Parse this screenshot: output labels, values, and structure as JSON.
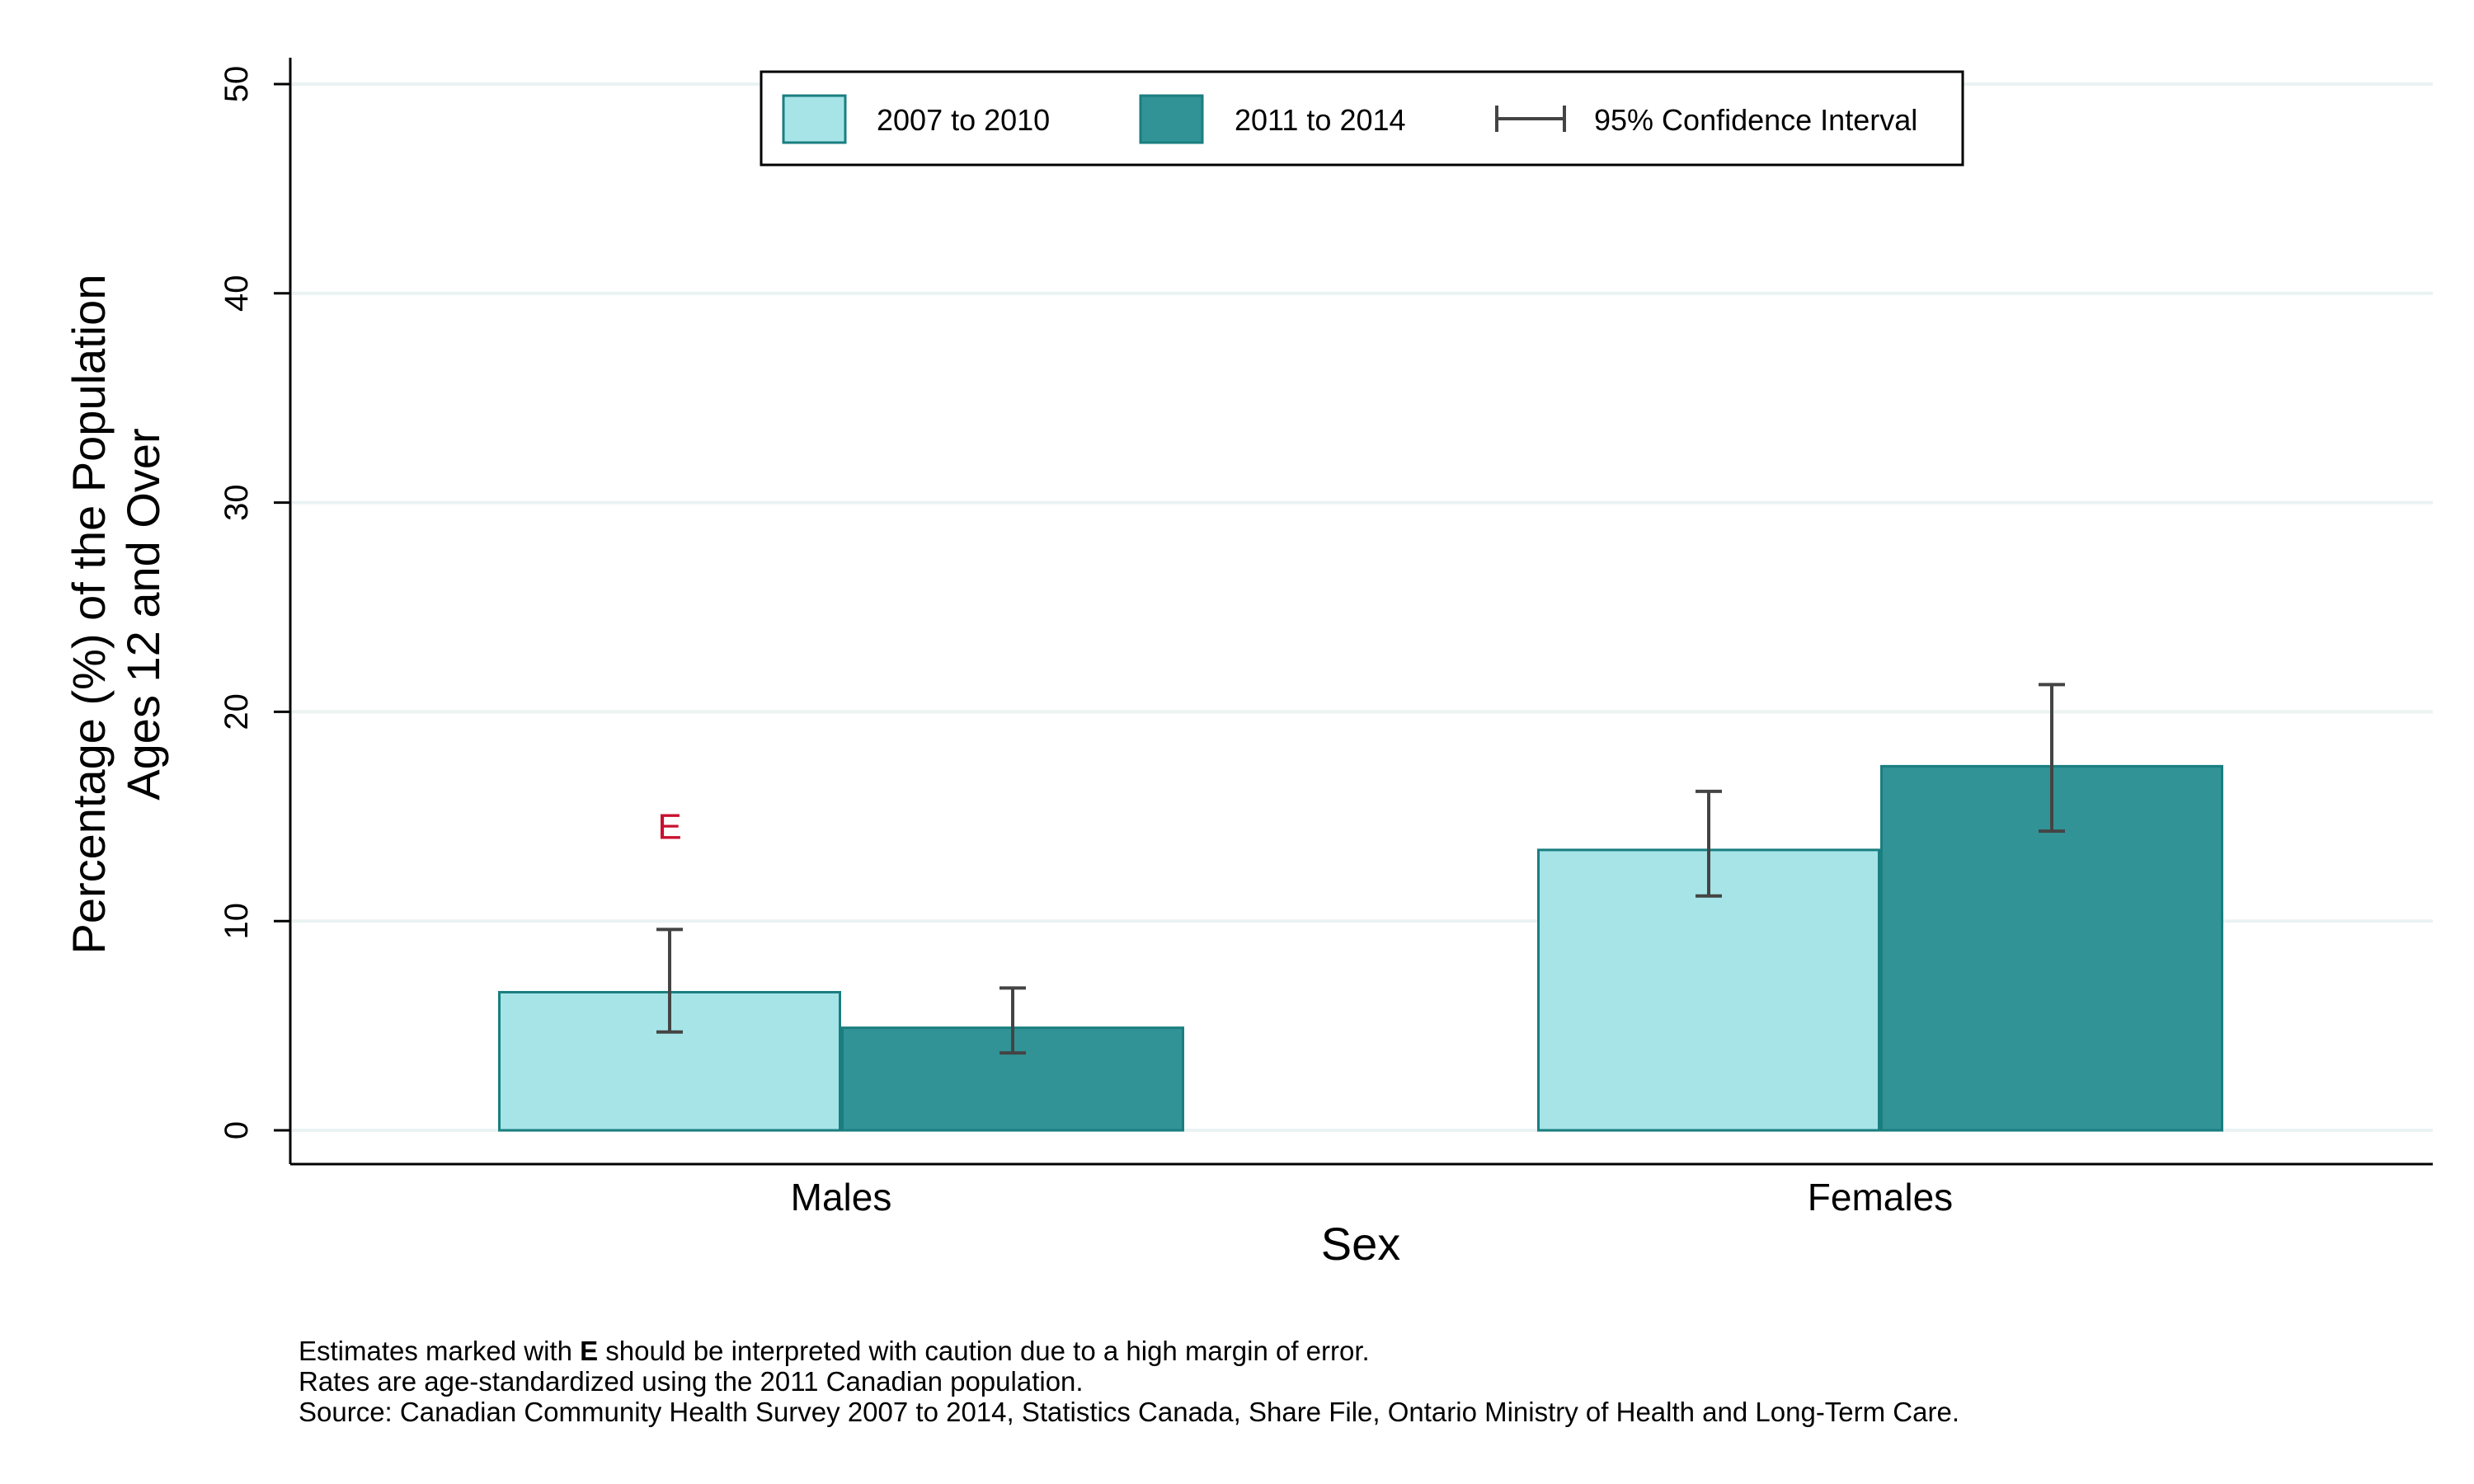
{
  "chart_data": {
    "type": "bar",
    "title": "",
    "xlabel": "Sex",
    "ylabel_lines": [
      "Percentage (%) of the Population",
      "Ages 12 and Over"
    ],
    "categories": [
      "Males",
      "Females"
    ],
    "ylim": [
      0,
      50
    ],
    "yticks": [
      "0",
      "10",
      "20",
      "30",
      "40",
      "50"
    ],
    "grid": true,
    "legend_position": "top-center",
    "series": [
      {
        "name": "2007 to 2010",
        "color": "#a6e4e7",
        "values": [
          6.6,
          13.4
        ],
        "ci_low": [
          4.7,
          11.2
        ],
        "ci_high": [
          9.6,
          16.2
        ],
        "flags": [
          "E",
          ""
        ]
      },
      {
        "name": "2011 to 2014",
        "color": "#329396",
        "values": [
          4.9,
          17.4
        ],
        "ci_low": [
          3.7,
          14.3
        ],
        "ci_high": [
          6.8,
          21.3
        ],
        "flags": [
          "",
          ""
        ]
      }
    ],
    "ci_label": "95% Confidence Interval",
    "flag_color": "#c8102e"
  },
  "notes": {
    "line1_pre": "Estimates marked with ",
    "line1_bold": "E",
    "line1_post": " should be interpreted with caution due to a high margin of error.",
    "line2": "Rates are age-standardized using the 2011 Canadian population.",
    "line3": "Source: Canadian Community Health Survey 2007 to 2014, Statistics Canada, Share File, Ontario Ministry of Health and Long-Term Care."
  }
}
